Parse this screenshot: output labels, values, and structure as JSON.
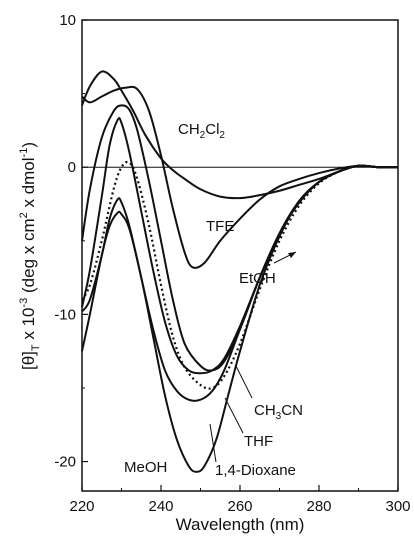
{
  "chart_data": {
    "type": "line",
    "title": "",
    "xlabel": "Wavelength (nm)",
    "ylabel": "[θ]T x 10-3 (deg x cm2 x dmol-1)",
    "xlim": [
      220,
      300
    ],
    "ylim": [
      -22,
      10
    ],
    "x_ticks": [
      220,
      240,
      260,
      280,
      300
    ],
    "y_ticks": [
      10,
      0,
      -10,
      -20
    ],
    "grid": false,
    "zero_line": true,
    "annotations": [
      {
        "text": "CH2Cl2",
        "series": "CH2Cl2"
      },
      {
        "text": "TFE",
        "series": "TFE"
      },
      {
        "text": "EtOH",
        "series": "EtOH"
      },
      {
        "text": "CH3CN",
        "series": "CH3CN"
      },
      {
        "text": "THF",
        "series": "THF"
      },
      {
        "text": "1,4-Dioxane",
        "series": "1,4-Dioxane"
      },
      {
        "text": "MeOH",
        "series": "MeOH"
      }
    ],
    "series": [
      {
        "name": "CH2Cl2",
        "style": "solid",
        "x": [
          220,
          222,
          225,
          228,
          230,
          233,
          236,
          240,
          243,
          246,
          250,
          255,
          260,
          265,
          270,
          275,
          280,
          285,
          290,
          295,
          300
        ],
        "y": [
          4.2,
          5.5,
          6.5,
          6.0,
          5.2,
          3.8,
          2.2,
          0.6,
          -0.2,
          -0.8,
          -1.5,
          -2.0,
          -2.1,
          -1.9,
          -1.6,
          -1.2,
          -0.8,
          -0.3,
          0.1,
          0.0,
          0.0
        ]
      },
      {
        "name": "TFE",
        "style": "solid",
        "x": [
          220,
          222,
          225,
          228,
          231,
          234,
          237,
          240,
          243,
          246,
          248,
          251,
          255,
          260,
          265,
          270,
          275,
          280,
          285,
          290,
          295,
          300
        ],
        "y": [
          4.8,
          4.4,
          4.8,
          5.2,
          5.4,
          5.3,
          3.8,
          0.8,
          -2.8,
          -5.8,
          -6.8,
          -6.5,
          -5.0,
          -3.5,
          -2.2,
          -1.3,
          -0.8,
          -0.4,
          -0.1,
          0.1,
          0.0,
          0.0
        ]
      },
      {
        "name": "EtOH",
        "style": "solid",
        "x": [
          220,
          222,
          225,
          228,
          230,
          232,
          234,
          237,
          240,
          243,
          246,
          250,
          253,
          256,
          260,
          265,
          270,
          275,
          280,
          285,
          290,
          295,
          300
        ],
        "y": [
          -5.0,
          -1.5,
          2.0,
          3.8,
          4.2,
          3.9,
          2.5,
          -1.0,
          -5.0,
          -9.0,
          -12.0,
          -13.5,
          -13.8,
          -13.2,
          -11.0,
          -7.5,
          -4.5,
          -2.3,
          -1.0,
          -0.3,
          0.1,
          0.0,
          0.0
        ]
      },
      {
        "name": "CH3CN",
        "style": "solid",
        "x": [
          220,
          222,
          225,
          227,
          229,
          230,
          232,
          235,
          238,
          241,
          244,
          247,
          250,
          253,
          256,
          260,
          265,
          270,
          275,
          280,
          285,
          290,
          295,
          300
        ],
        "y": [
          -9.5,
          -7.0,
          -2.0,
          1.5,
          3.2,
          3.0,
          1.0,
          -3.0,
          -7.0,
          -10.5,
          -12.8,
          -13.8,
          -14.0,
          -13.8,
          -13.0,
          -10.8,
          -7.5,
          -4.5,
          -2.4,
          -1.0,
          -0.3,
          0.1,
          0.0,
          0.0
        ]
      },
      {
        "name": "THF",
        "style": "dotted",
        "x": [
          220,
          222,
          225,
          228,
          230,
          232,
          234,
          237,
          240,
          243,
          246,
          250,
          253,
          256,
          260,
          265,
          270,
          275,
          280,
          285,
          290,
          295,
          300
        ],
        "y": [
          -9.0,
          -8.0,
          -5.0,
          -1.5,
          0.0,
          0.3,
          -0.8,
          -4.0,
          -8.0,
          -11.5,
          -13.6,
          -14.8,
          -15.0,
          -14.2,
          -12.0,
          -8.3,
          -5.0,
          -2.6,
          -1.1,
          -0.3,
          0.1,
          0.0,
          0.0
        ]
      },
      {
        "name": "1,4-Dioxane",
        "style": "solid",
        "x": [
          220,
          222,
          225,
          227,
          229,
          230,
          232,
          235,
          238,
          241,
          244,
          247,
          250,
          253,
          256,
          260,
          265,
          270,
          275,
          280,
          285,
          290,
          295,
          300
        ],
        "y": [
          -9.8,
          -9.0,
          -6.0,
          -3.5,
          -2.2,
          -2.4,
          -4.0,
          -7.5,
          -11.0,
          -13.8,
          -15.2,
          -15.8,
          -15.8,
          -15.2,
          -13.8,
          -11.0,
          -7.5,
          -4.5,
          -2.3,
          -1.0,
          -0.3,
          0.1,
          0.0,
          0.0
        ]
      },
      {
        "name": "MeOH",
        "style": "solid",
        "x": [
          220,
          222,
          225,
          227,
          229,
          230,
          232,
          235,
          238,
          241,
          244,
          247,
          249,
          251,
          254,
          257,
          260,
          265,
          270,
          275,
          280,
          285,
          290,
          295,
          300
        ],
        "y": [
          -12.5,
          -10.0,
          -6.0,
          -4.0,
          -3.1,
          -3.2,
          -4.2,
          -7.5,
          -11.5,
          -15.5,
          -18.5,
          -20.3,
          -20.7,
          -20.3,
          -18.5,
          -15.5,
          -12.5,
          -8.0,
          -4.7,
          -2.3,
          -1.0,
          -0.3,
          0.1,
          0.0,
          0.0
        ]
      }
    ]
  }
}
